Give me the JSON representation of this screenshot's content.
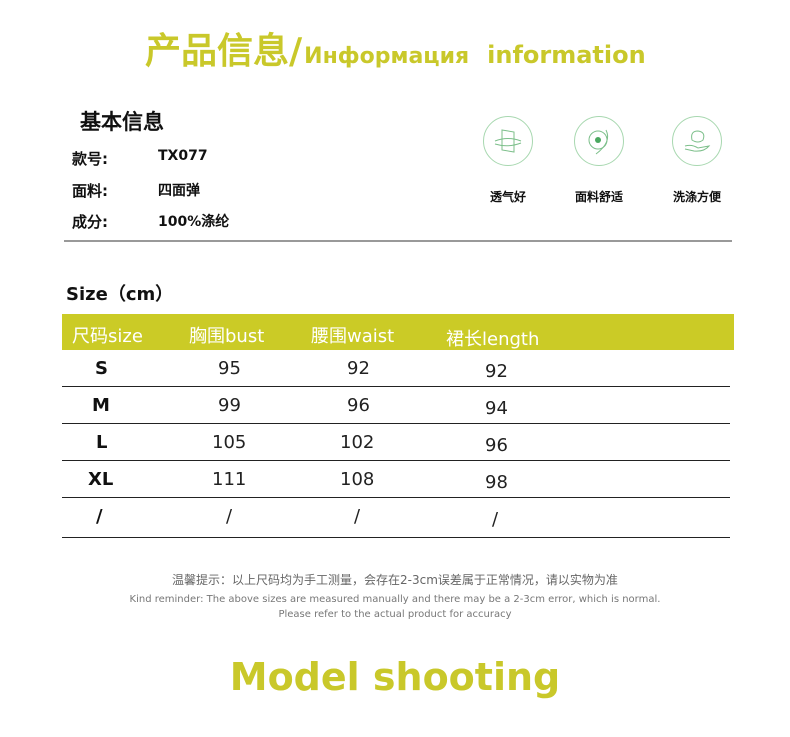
{
  "header": {
    "title_zh": "产品信息/",
    "title_ru": "Информация",
    "title_en": "information"
  },
  "basic": {
    "heading": "基本信息",
    "fields": [
      {
        "label": "款号:",
        "value": "TX077"
      },
      {
        "label": "面料:",
        "value": "四面弹"
      },
      {
        "label": "成分:",
        "value": "100%涤纶"
      }
    ]
  },
  "features": [
    {
      "icon": "breathable-icon",
      "label": "透气好"
    },
    {
      "icon": "comfortable-fabric-icon",
      "label": "面料舒适"
    },
    {
      "icon": "easy-wash-icon",
      "label": "洗涤方便"
    }
  ],
  "accent_color": "#cbcb26",
  "size_table": {
    "heading": "Size（cm）",
    "columns": [
      "尺码size",
      "胸围bust",
      "腰围waist",
      "裙长length"
    ],
    "rows": [
      [
        "S",
        "95",
        "92",
        "92"
      ],
      [
        "M",
        "99",
        "96",
        "94"
      ],
      [
        "L",
        "105",
        "102",
        "96"
      ],
      [
        "XL",
        "111",
        "108",
        "98"
      ],
      [
        "/",
        "/",
        "/",
        "/"
      ]
    ]
  },
  "note": {
    "zh": "温馨提示：以上尺码均为手工测量，会存在2-3cm误差属于正常情况，请以实物为准",
    "en1": "Kind reminder: The above sizes are measured manually and there may be a 2-3cm error, which is normal.",
    "en2": "Please refer to the actual product for accuracy"
  },
  "footer": {
    "title": "Model shooting"
  }
}
